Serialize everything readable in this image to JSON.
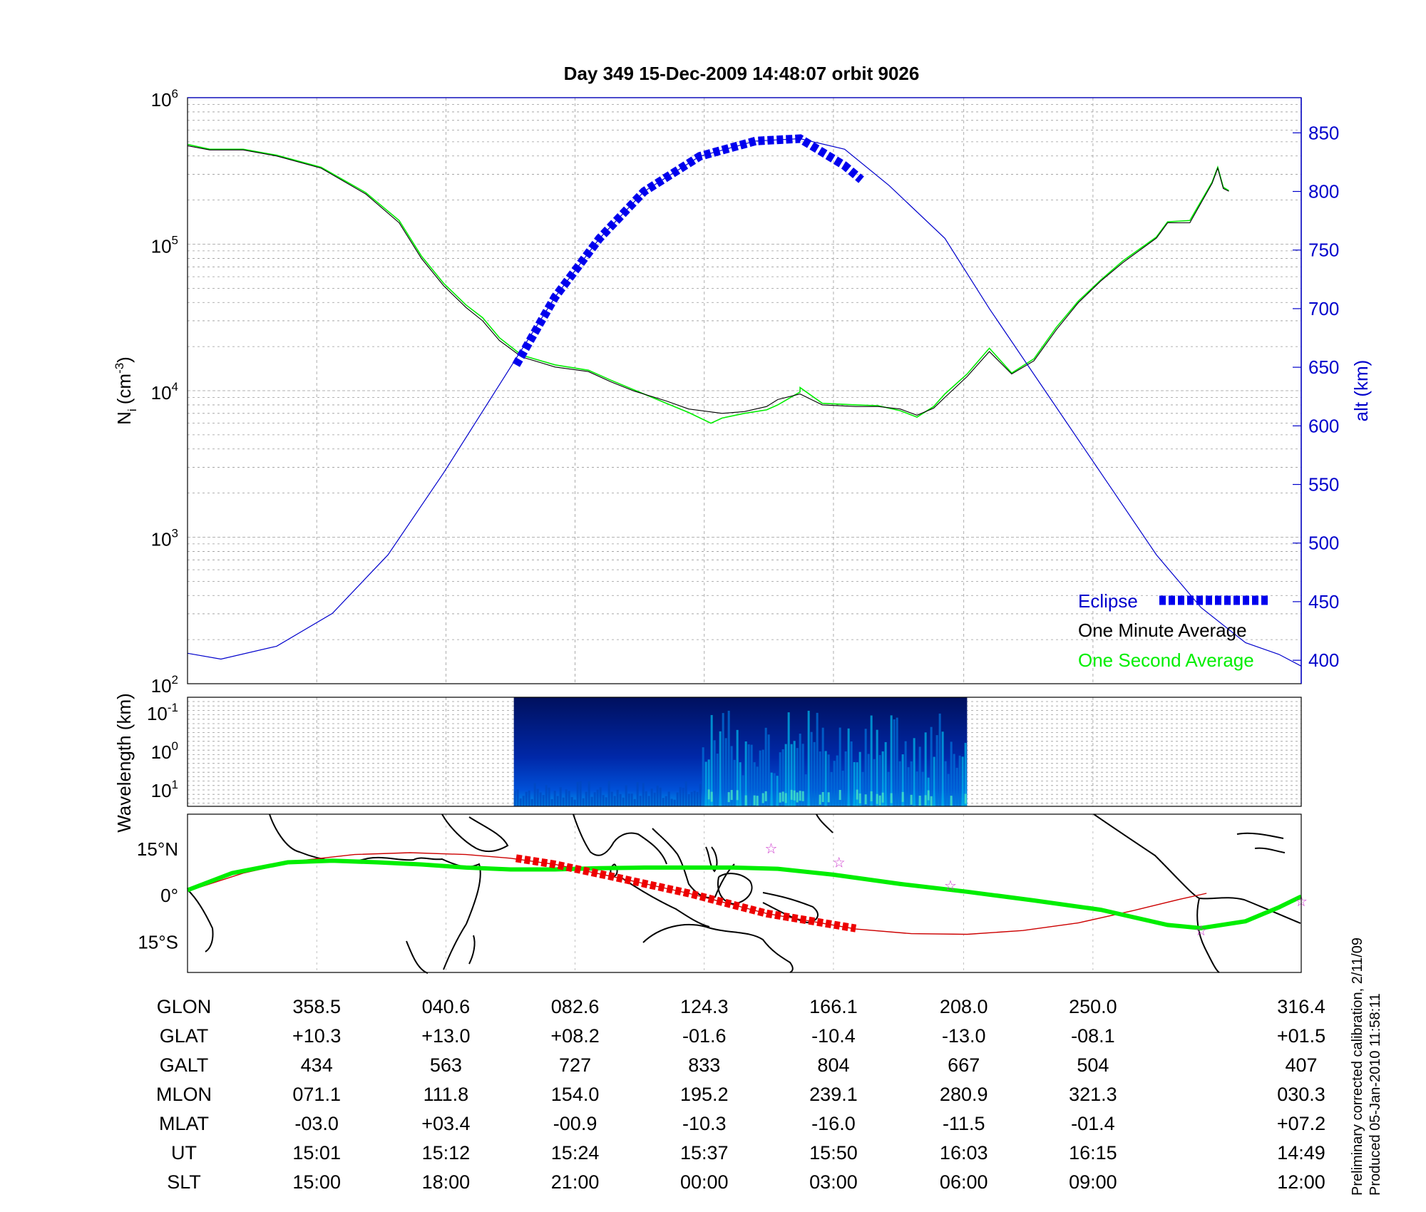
{
  "title": "Day 349  15-Dec-2009 14:48:07   orbit 9026",
  "colors": {
    "altitude": "#0000cc",
    "eclipse": "#0000ee",
    "minute_avg": "#000000",
    "second_avg": "#00ee00",
    "track_green": "#00ee00",
    "track_red": "#cc0000",
    "track_eclipse": "#ee0000",
    "stars": "#cc33cc",
    "grid": "#999999"
  },
  "side_note": {
    "line1": "Preliminary corrected calibration, 2/11/09",
    "line2": "Produced 05-Jan-2010 11:58:11"
  },
  "chart_data": [
    {
      "type": "line",
      "panel": "ion density and altitude",
      "ylabel_left": "N",
      "ylabel_left_sub": "i",
      "ylabel_left_unit": "(cm",
      "ylabel_left_unit_sup": "-3",
      "ylabel_left_close": ")",
      "ylabel_right": "alt (km)",
      "left_axis": {
        "scale": "log",
        "ylim": [
          100,
          1000000
        ],
        "ticks": [
          "10",
          "10",
          "10",
          "10",
          "10"
        ],
        "tick_exponents": [
          "2",
          "3",
          "4",
          "5",
          "6"
        ],
        "tick_values": [
          100,
          1000,
          10000,
          100000,
          1000000
        ]
      },
      "right_axis": {
        "scale": "linear",
        "ylim": [
          380,
          880
        ],
        "ticks": [
          "400",
          "450",
          "500",
          "550",
          "600",
          "650",
          "700",
          "750",
          "800",
          "850"
        ],
        "tick_values": [
          400,
          450,
          500,
          550,
          600,
          650,
          700,
          750,
          800,
          850
        ]
      },
      "xlim": [
        0,
        1
      ],
      "grid": true,
      "legend": {
        "placement": "bottom-right",
        "entries": [
          "Eclipse",
          "One Minute Average",
          "One Second Average"
        ]
      },
      "series": [
        {
          "name": "One Minute Average",
          "axis": "left",
          "x": [
            0,
            0.02,
            0.05,
            0.08,
            0.12,
            0.16,
            0.19,
            0.21,
            0.23,
            0.25,
            0.265,
            0.28,
            0.3,
            0.33,
            0.36,
            0.38,
            0.4,
            0.43,
            0.45,
            0.48,
            0.5,
            0.52,
            0.53,
            0.55,
            0.57,
            0.6,
            0.62,
            0.64,
            0.655,
            0.67,
            0.68,
            0.7,
            0.72,
            0.74,
            0.76,
            0.78,
            0.8,
            0.82,
            0.84,
            0.87,
            0.88,
            0.9,
            0.92,
            0.925,
            0.93,
            0.935
          ],
          "y": [
            470000,
            440000,
            440000,
            400000,
            330000,
            220000,
            140000,
            80000,
            52000,
            37000,
            30000,
            22000,
            17000,
            14500,
            13500,
            11500,
            10000,
            8500,
            7500,
            7000,
            7200,
            7800,
            8700,
            9500,
            8000,
            7800,
            7800,
            7500,
            6800,
            7600,
            9000,
            12500,
            18500,
            13000,
            16000,
            26000,
            40000,
            56000,
            75000,
            110000,
            140000,
            140000,
            260000,
            330000,
            240000,
            230000
          ]
        },
        {
          "name": "One Second Average",
          "axis": "left",
          "x": [
            0,
            0.02,
            0.05,
            0.08,
            0.12,
            0.16,
            0.19,
            0.21,
            0.23,
            0.25,
            0.265,
            0.28,
            0.3,
            0.33,
            0.36,
            0.38,
            0.4,
            0.43,
            0.45,
            0.47,
            0.48,
            0.5,
            0.52,
            0.53,
            0.55,
            0.55,
            0.57,
            0.6,
            0.62,
            0.64,
            0.655,
            0.67,
            0.68,
            0.7,
            0.72,
            0.74,
            0.76,
            0.78,
            0.8,
            0.82,
            0.84,
            0.87,
            0.88,
            0.9,
            0.92,
            0.925,
            0.93,
            0.935
          ],
          "y": [
            480000,
            445000,
            445000,
            405000,
            335000,
            225000,
            145000,
            83000,
            54000,
            38500,
            31500,
            23000,
            17500,
            15000,
            13800,
            11800,
            10200,
            8200,
            7100,
            6000,
            6500,
            7000,
            7400,
            8000,
            9800,
            10500,
            8200,
            8000,
            7900,
            7300,
            6600,
            7800,
            9500,
            13000,
            19500,
            13200,
            16500,
            27000,
            41000,
            57000,
            77000,
            112000,
            142000,
            145000,
            265000,
            335000,
            245000,
            232000
          ]
        },
        {
          "name": "altitude",
          "axis": "right",
          "x": [
            0,
            0.03,
            0.08,
            0.13,
            0.18,
            0.23,
            0.29,
            0.33,
            0.37,
            0.41,
            0.46,
            0.51,
            0.55,
            0.59,
            0.63,
            0.68,
            0.72,
            0.77,
            0.82,
            0.87,
            0.91,
            0.95,
            0.98,
            1.0
          ],
          "y": [
            406,
            401,
            412,
            440,
            490,
            560,
            650,
            710,
            760,
            800,
            830,
            843,
            845,
            836,
            805,
            760,
            700,
            630,
            560,
            490,
            445,
            415,
            405,
            395
          ]
        },
        {
          "name": "Eclipse",
          "axis": "right",
          "x": [
            0.295,
            0.33,
            0.37,
            0.41,
            0.46,
            0.51,
            0.55,
            0.59,
            0.605
          ],
          "y": [
            652,
            710,
            760,
            800,
            830,
            843,
            845,
            822,
            810
          ]
        }
      ]
    },
    {
      "type": "heatmap",
      "panel": "wavelength spectrogram",
      "ylabel": "Wavelength (km)",
      "yticks": [
        "10",
        "10",
        "10"
      ],
      "ytick_exponents": [
        "-1",
        "0",
        "1"
      ],
      "data_extent_x": [
        0.293,
        0.7
      ],
      "active_regions_x": [
        [
          0.46,
          0.7
        ]
      ]
    },
    {
      "type": "line",
      "panel": "ground track map",
      "yticks": [
        "15°N",
        "0°",
        "15°S"
      ],
      "tick_values": [
        15,
        0,
        -15
      ],
      "ylim": [
        -25,
        26
      ],
      "series": [
        {
          "name": "green track",
          "x": [
            0,
            0.04,
            0.09,
            0.13,
            0.17,
            0.21,
            0.25,
            0.29,
            0.33,
            0.37,
            0.41,
            0.45,
            0.49,
            0.53,
            0.58,
            0.64,
            0.7,
            0.76,
            0.82,
            0.88,
            0.91,
            0.95,
            0.98,
            1.0
          ],
          "y": [
            1.5,
            7,
            10.5,
            11,
            10.5,
            9.8,
            8.8,
            8.2,
            8.2,
            8.6,
            8.8,
            8.8,
            8.8,
            8.4,
            6.5,
            3.5,
            1,
            -1.8,
            -4.8,
            -9.7,
            -10.7,
            -8.5,
            -4,
            -0.5
          ]
        },
        {
          "name": "red track",
          "x": [
            0,
            0.05,
            0.1,
            0.15,
            0.2,
            0.25,
            0.29,
            0.33,
            0.38,
            0.45,
            0.52,
            0.6,
            0.65,
            0.7,
            0.75,
            0.8,
            0.85,
            0.89,
            0.915
          ],
          "y": [
            1.2,
            7,
            11,
            13,
            13.6,
            13,
            11.8,
            9.8,
            6,
            0.5,
            -6,
            -11,
            -12.5,
            -12.7,
            -11.5,
            -9,
            -5,
            -1.5,
            0.5
          ]
        },
        {
          "name": "eclipse track",
          "x": [
            0.295,
            0.33,
            0.38,
            0.45,
            0.52,
            0.6
          ],
          "y": [
            11.8,
            9.8,
            6,
            0.5,
            -6,
            -10.8
          ]
        }
      ],
      "stars": [
        [
          0.524,
          15
        ],
        [
          0.585,
          10.5
        ],
        [
          0.685,
          3
        ],
        [
          0.91,
          -11.5
        ],
        [
          1.0,
          -2
        ]
      ]
    }
  ],
  "table": {
    "row_labels": [
      "GLON",
      "GLAT",
      "GALT",
      "MLON",
      "MLAT",
      "UT",
      "SLT"
    ],
    "columns": [
      [
        "358.5",
        "+10.3",
        "434",
        "071.1",
        "-03.0",
        "15:01",
        "15:00"
      ],
      [
        "040.6",
        "+13.0",
        "563",
        "111.8",
        "+03.4",
        "15:12",
        "18:00"
      ],
      [
        "082.6",
        "+08.2",
        "727",
        "154.0",
        "-00.9",
        "15:24",
        "21:00"
      ],
      [
        "124.3",
        "-01.6",
        "833",
        "195.2",
        "-10.3",
        "15:37",
        "00:00"
      ],
      [
        "166.1",
        "-10.4",
        "804",
        "239.1",
        "-16.0",
        "15:50",
        "03:00"
      ],
      [
        "208.0",
        "-13.0",
        "667",
        "280.9",
        "-11.5",
        "16:03",
        "06:00"
      ],
      [
        "250.0",
        "-08.1",
        "504",
        "321.3",
        "-01.4",
        "16:15",
        "09:00"
      ],
      [
        "316.4",
        "+01.5",
        "407",
        "030.3",
        "+07.2",
        "14:49",
        "12:00"
      ]
    ]
  }
}
